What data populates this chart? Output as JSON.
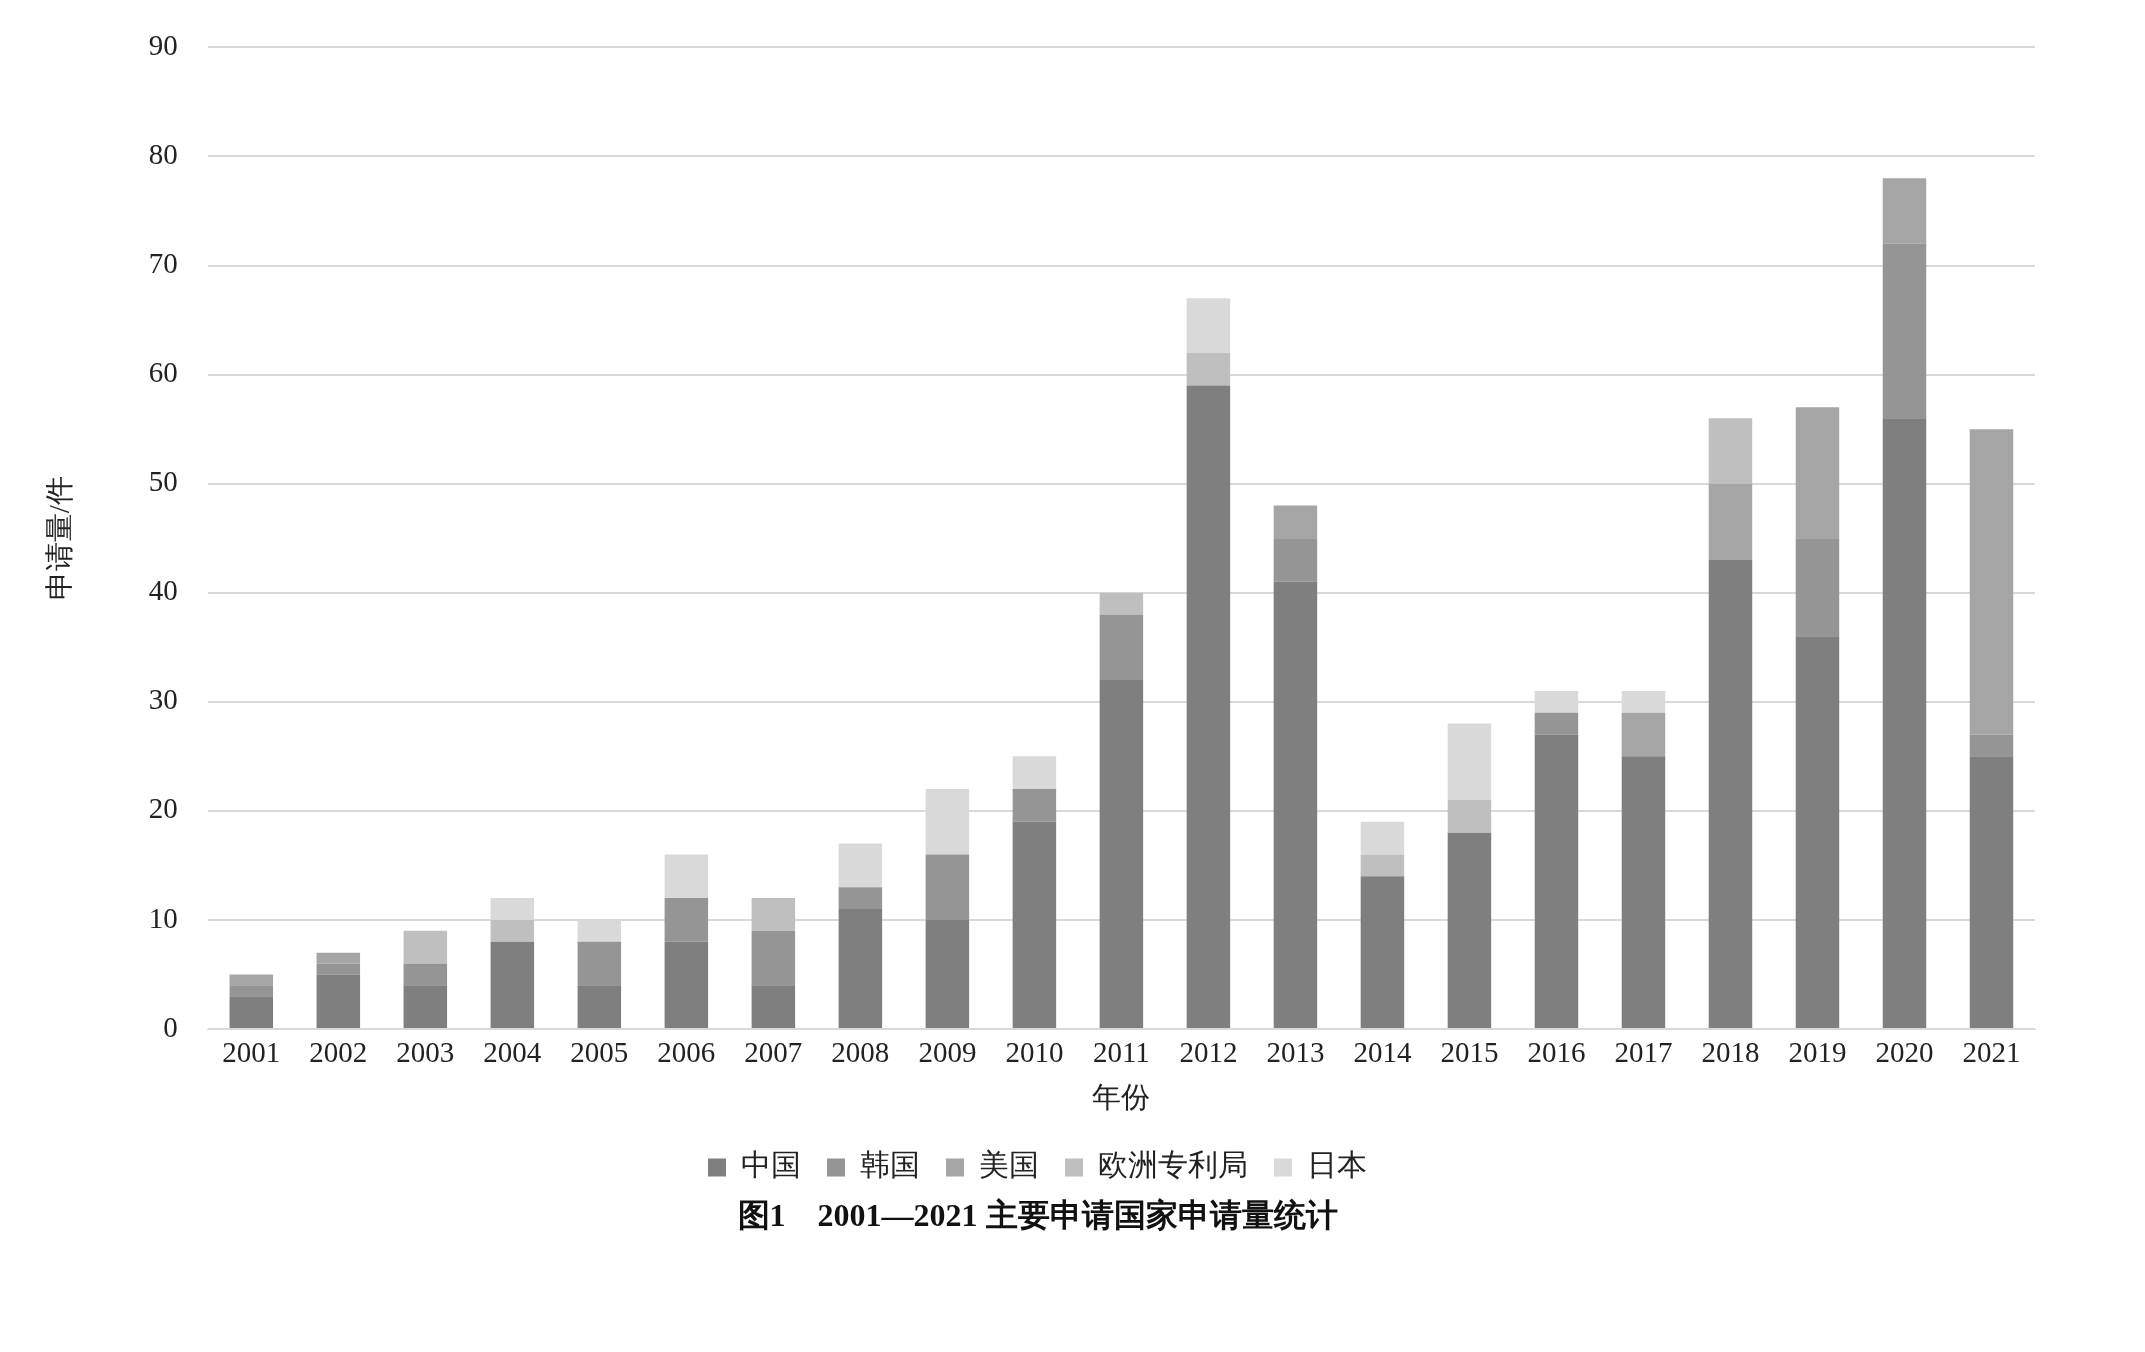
{
  "chart_data": {
    "type": "bar",
    "stacked": true,
    "title": "图1　2001—2021 主要申请国家申请量统计",
    "xlabel": "年份",
    "ylabel": "申请量/件",
    "categories": [
      "2001",
      "2002",
      "2003",
      "2004",
      "2005",
      "2006",
      "2007",
      "2008",
      "2009",
      "2010",
      "2011",
      "2012",
      "2013",
      "2014",
      "2015",
      "2016",
      "2017",
      "2018",
      "2019",
      "2020",
      "2021"
    ],
    "series": [
      {
        "name": "中国",
        "color": "#7f7f7f",
        "values": [
          3,
          5,
          4,
          8,
          4,
          8,
          4,
          11,
          10,
          19,
          32,
          59,
          41,
          14,
          18,
          27,
          25,
          43,
          36,
          56,
          25
        ]
      },
      {
        "name": "韩国",
        "color": "#959595",
        "values": [
          1,
          1,
          2,
          0,
          4,
          4,
          5,
          2,
          6,
          3,
          6,
          0,
          4,
          0,
          0,
          2,
          0,
          0,
          9,
          16,
          2
        ]
      },
      {
        "name": "美国",
        "color": "#a5a5a5",
        "values": [
          1,
          1,
          0,
          0,
          0,
          0,
          0,
          0,
          0,
          0,
          0,
          0,
          3,
          0,
          0,
          0,
          4,
          7,
          12,
          6,
          28
        ]
      },
      {
        "name": "欧洲专利局",
        "color": "#bfbfbf",
        "values": [
          0,
          0,
          3,
          2,
          0,
          0,
          3,
          0,
          0,
          0,
          2,
          3,
          0,
          2,
          3,
          0,
          0,
          6,
          0,
          0,
          0
        ]
      },
      {
        "name": "日本",
        "color": "#d9d9d9",
        "values": [
          0,
          0,
          0,
          2,
          2,
          4,
          0,
          4,
          6,
          3,
          0,
          5,
          0,
          3,
          7,
          2,
          2,
          0,
          0,
          0,
          0
        ]
      }
    ],
    "ylim": [
      0,
      90
    ],
    "yticks": [
      0,
      10,
      20,
      30,
      40,
      50,
      60,
      70,
      80,
      90
    ],
    "grid": "y",
    "legend": "bottom"
  }
}
